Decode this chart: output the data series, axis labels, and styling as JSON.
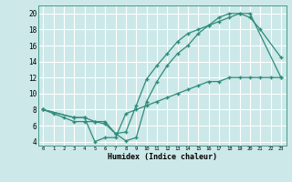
{
  "title": "",
  "xlabel": "Humidex (Indice chaleur)",
  "bg_color": "#cce8e8",
  "grid_color": "#ffffff",
  "line_color": "#2e8b7a",
  "xlim": [
    -0.5,
    23.5
  ],
  "ylim": [
    3.5,
    21.0
  ],
  "xticks": [
    0,
    1,
    2,
    3,
    4,
    5,
    6,
    7,
    8,
    9,
    10,
    11,
    12,
    13,
    14,
    15,
    16,
    17,
    18,
    19,
    20,
    21,
    22,
    23
  ],
  "xtick_labels": [
    "0",
    "1",
    "2",
    "3",
    "4",
    "5",
    "6",
    "7",
    "8",
    "9",
    "10",
    "11",
    "12",
    "13",
    "14",
    "15",
    "16",
    "17",
    "18",
    "19",
    "20",
    "21",
    "22",
    "23"
  ],
  "yticks": [
    4,
    6,
    8,
    10,
    12,
    14,
    16,
    18,
    20
  ],
  "ytick_labels": [
    "4",
    "6",
    "8",
    "10",
    "12",
    "14",
    "16",
    "18",
    "20"
  ],
  "line1_x": [
    0,
    1,
    2,
    3,
    4,
    5,
    6,
    7,
    8,
    9,
    10,
    11,
    12,
    13,
    14,
    15,
    16,
    17,
    18,
    19,
    20,
    23
  ],
  "line1_y": [
    8.0,
    7.5,
    7.0,
    6.5,
    6.5,
    6.5,
    6.2,
    5.0,
    5.2,
    8.5,
    11.8,
    13.5,
    15.0,
    16.5,
    17.5,
    18.0,
    18.5,
    19.0,
    19.5,
    20.0,
    20.0,
    12.0
  ],
  "line2_x": [
    0,
    3,
    4,
    5,
    6,
    7,
    8,
    9,
    10,
    11,
    12,
    13,
    14,
    15,
    16,
    17,
    18,
    19,
    20,
    21,
    23
  ],
  "line2_y": [
    8.0,
    7.0,
    7.0,
    6.5,
    6.5,
    5.0,
    4.1,
    4.5,
    9.0,
    11.5,
    13.5,
    15.0,
    16.0,
    17.5,
    18.5,
    19.5,
    20.0,
    20.0,
    19.5,
    18.0,
    14.5
  ],
  "line3_x": [
    0,
    3,
    4,
    5,
    6,
    7,
    8,
    9,
    10,
    11,
    12,
    13,
    14,
    15,
    16,
    17,
    18,
    19,
    20,
    21,
    22,
    23
  ],
  "line3_y": [
    8.0,
    7.0,
    7.0,
    4.0,
    4.5,
    4.5,
    7.5,
    8.0,
    8.5,
    9.0,
    9.5,
    10.0,
    10.5,
    11.0,
    11.5,
    11.5,
    12.0,
    12.0,
    12.0,
    12.0,
    12.0,
    12.0
  ]
}
